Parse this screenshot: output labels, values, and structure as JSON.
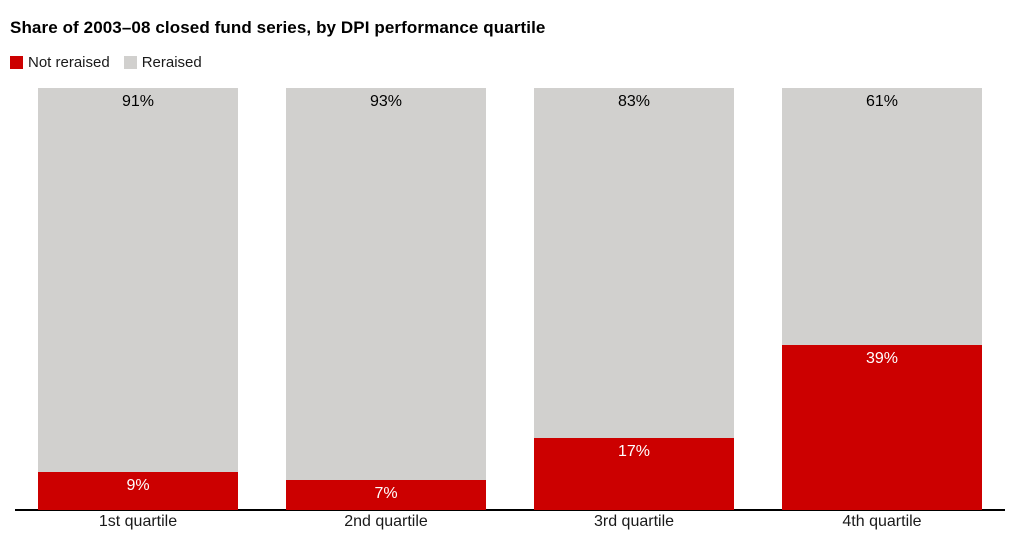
{
  "title": "Share of 2003–08 closed fund series, by DPI performance quartile",
  "legend": {
    "items": [
      {
        "label": "Not reraised",
        "color": "#cc0000"
      },
      {
        "label": "Reraised",
        "color": "#d1d0ce"
      }
    ]
  },
  "chart_data": {
    "type": "bar",
    "stacked": true,
    "title": "Share of 2003–08 closed fund series, by DPI performance quartile",
    "categories": [
      "1st quartile",
      "2nd quartile",
      "3rd quartile",
      "4th quartile"
    ],
    "series": [
      {
        "name": "Not reraised",
        "color": "#cc0000",
        "label_color": "#ffffff",
        "values": [
          9,
          7,
          17,
          39
        ]
      },
      {
        "name": "Reraised",
        "color": "#d1d0ce",
        "label_color": "#000000",
        "values": [
          91,
          93,
          83,
          61
        ]
      }
    ],
    "value_suffix": "%",
    "ylim": [
      0,
      100
    ],
    "xlabel": "",
    "ylabel": "",
    "grid": false,
    "legend_position": "top-left",
    "axis_color": "#000000",
    "background": "#ffffff"
  }
}
